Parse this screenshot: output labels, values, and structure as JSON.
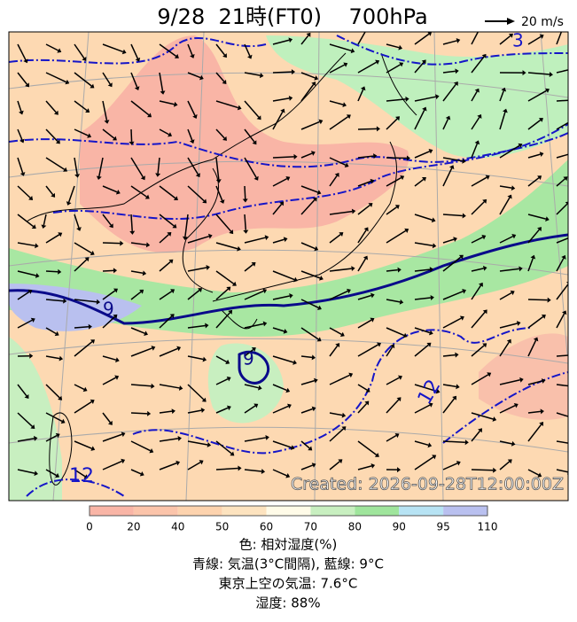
{
  "header": {
    "title": "9/28  21時(FT0)    700hPa",
    "wind_legend": "20 m/s"
  },
  "map": {
    "created": "Created: 2026-09-28T12:00:00Z",
    "contour_labels": [
      "3",
      "9",
      "9",
      "12",
      "12"
    ]
  },
  "colorbar": {
    "ticks": [
      0,
      20,
      40,
      50,
      60,
      70,
      80,
      90,
      95,
      110
    ],
    "colors": [
      "#f9b5a6",
      "#fbc4aa",
      "#fdd3ae",
      "#fde3bf",
      "#fffbe8",
      "#c8efc0",
      "#9fe59c",
      "#b7e3f4",
      "#b9c0ef"
    ]
  },
  "captions": [
    "色: 相対湿度(%)",
    "青線: 気温(3°C間隔), 藍線: 9°C",
    "東京上空の気温: 7.6°C",
    "湿度: 88%"
  ]
}
